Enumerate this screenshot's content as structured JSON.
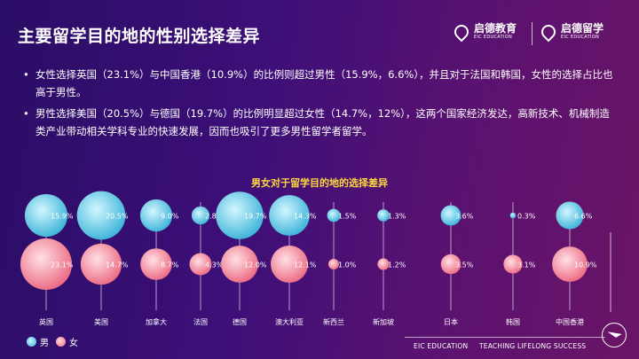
{
  "header": {
    "title": "主要留学目的地的性别选择差异",
    "brand1": {
      "cn": "启德教育",
      "en": "EIC EDUCATION"
    },
    "brand2": {
      "cn": "启德留学",
      "en": "EIC EDUCATION"
    }
  },
  "bullets": [
    "女性选择英国（23.1%）与中国香港（10.9%）的比例则超过男性（15.9%，6.6%），并且对于法国和韩国，女性的选择占比也高于男性。",
    "男性选择美国（20.5%）与德国（19.7%）的比例明显超过女性（14.7%，12%），这两个国家经济发达，高新技术、机械制造类产业带动相关学科专业的快速发展，因而也吸引了更多男性留学者留学。"
  ],
  "legend": {
    "male": "男",
    "female": "女"
  },
  "footer": {
    "left": "EIC EDUCATION",
    "right": "TEACHING LIFELONG SUCCESS"
  },
  "colors": {
    "male": "#5cc7e6",
    "female": "#f07f93",
    "title": "#ffd740"
  },
  "chart_data": {
    "type": "bubble",
    "title": "男女对于留学目的地的选择差异",
    "categories": [
      "英国",
      "美国",
      "加拿大",
      "法国",
      "德国",
      "澳大利亚",
      "新西兰",
      "新加坡",
      "日本",
      "韩国",
      "中国香港"
    ],
    "series": [
      {
        "name": "男",
        "values": [
          15.9,
          20.5,
          9.0,
          2.8,
          19.7,
          14.3,
          1.5,
          1.3,
          3.6,
          0.3,
          6.6
        ]
      },
      {
        "name": "女",
        "values": [
          23.1,
          14.7,
          8.7,
          4.3,
          12.0,
          12.1,
          1.0,
          1.2,
          3.5,
          3.1,
          10.9
        ]
      }
    ]
  }
}
